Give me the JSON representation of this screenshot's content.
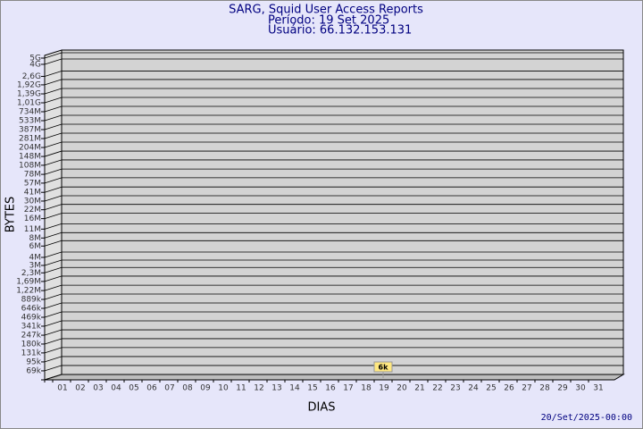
{
  "chart_data": {
    "type": "bar",
    "title": "SARG, Squid User Access Reports",
    "subtitle": [
      "Período: 19 Set 2025",
      "Usuário: 66.132.153.131"
    ],
    "y_label": "BYTES",
    "x_label": "DIAS",
    "footer": "20/Set/2025-00:00",
    "categories": [
      "01",
      "02",
      "03",
      "04",
      "05",
      "06",
      "07",
      "08",
      "09",
      "10",
      "11",
      "12",
      "13",
      "14",
      "15",
      "16",
      "17",
      "18",
      "19",
      "20",
      "21",
      "22",
      "23",
      "24",
      "25",
      "26",
      "27",
      "28",
      "29",
      "30",
      "31"
    ],
    "values": [
      null,
      null,
      null,
      null,
      null,
      null,
      null,
      null,
      null,
      null,
      null,
      null,
      null,
      null,
      null,
      null,
      null,
      null,
      6000,
      null,
      null,
      null,
      null,
      null,
      null,
      null,
      null,
      null,
      null,
      null,
      null
    ],
    "value_labels": [
      null,
      null,
      null,
      null,
      null,
      null,
      null,
      null,
      null,
      null,
      null,
      null,
      null,
      null,
      null,
      null,
      null,
      null,
      "6k",
      null,
      null,
      null,
      null,
      null,
      null,
      null,
      null,
      null,
      null,
      null,
      null
    ],
    "color": "#ffe880",
    "log": true,
    "grid": true,
    "ylim": [
      50000,
      5000000000
    ],
    "yticks": [
      {
        "value": 69000,
        "label": "69k"
      },
      {
        "value": 95000,
        "label": "95k"
      },
      {
        "value": 131000,
        "label": "131k"
      },
      {
        "value": 180000,
        "label": "180k"
      },
      {
        "value": 247000,
        "label": "247k"
      },
      {
        "value": 341000,
        "label": "341k"
      },
      {
        "value": 469000,
        "label": "469k"
      },
      {
        "value": 646000,
        "label": "646k"
      },
      {
        "value": 889000,
        "label": "889k"
      },
      {
        "value": 1220000,
        "label": "1,22M"
      },
      {
        "value": 1690000,
        "label": "1,69M"
      },
      {
        "value": 2300000,
        "label": "2,3M"
      },
      {
        "value": 3000000,
        "label": "3M"
      },
      {
        "value": 4000000,
        "label": "4M"
      },
      {
        "value": 6000000,
        "label": "6M"
      },
      {
        "value": 8000000,
        "label": "8M"
      },
      {
        "value": 11000000,
        "label": "11M"
      },
      {
        "value": 16000000,
        "label": "16M"
      },
      {
        "value": 22000000,
        "label": "22M"
      },
      {
        "value": 30000000,
        "label": "30M"
      },
      {
        "value": 41000000,
        "label": "41M"
      },
      {
        "value": 57000000,
        "label": "57M"
      },
      {
        "value": 78000000,
        "label": "78M"
      },
      {
        "value": 108000000,
        "label": "108M"
      },
      {
        "value": 148000000,
        "label": "148M"
      },
      {
        "value": 204000000,
        "label": "204M"
      },
      {
        "value": 281000000,
        "label": "281M"
      },
      {
        "value": 387000000,
        "label": "387M"
      },
      {
        "value": 533000000,
        "label": "533M"
      },
      {
        "value": 734000000,
        "label": "734M"
      },
      {
        "value": 1010000000,
        "label": "1,01G"
      },
      {
        "value": 1390000000,
        "label": "1,39G"
      },
      {
        "value": 1920000000,
        "label": "1,92G"
      },
      {
        "value": 2600000000,
        "label": "2,6G"
      },
      {
        "value": 4000000000,
        "label": "4G"
      },
      {
        "value": 5000000000,
        "label": "5G"
      }
    ]
  }
}
